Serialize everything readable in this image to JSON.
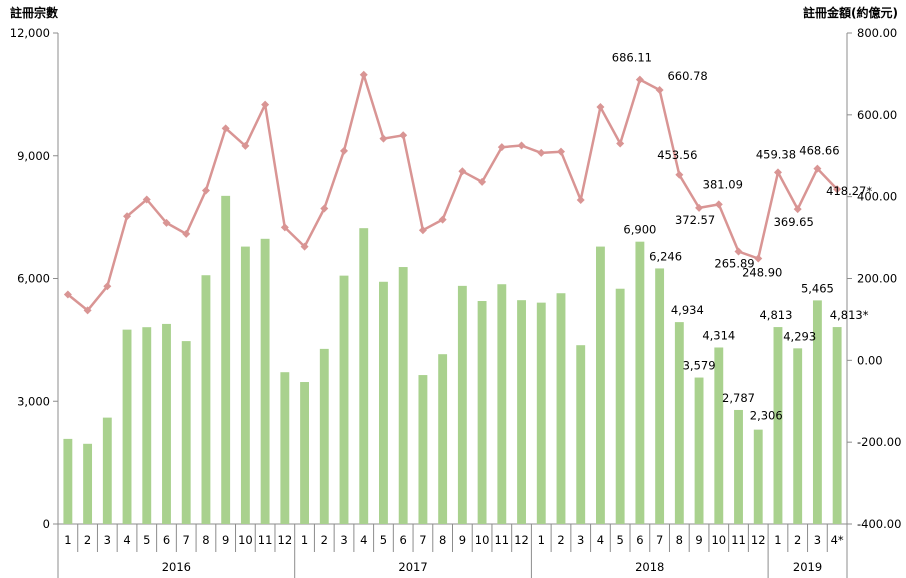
{
  "chart_data": {
    "type": "bar+line",
    "title": "",
    "ylabel_left": "註冊宗數",
    "ylabel_right": "註冊金額(約億元)",
    "ylim_left": [
      0,
      12000
    ],
    "ylim_right": [
      -400,
      800
    ],
    "yticks_left": [
      "0",
      "3,000",
      "6,000",
      "9,000",
      "12,000"
    ],
    "yticks_right": [
      "-400.00",
      "-200.00",
      "0.00",
      "200.00",
      "400.00",
      "600.00",
      "800.00"
    ],
    "grid": false,
    "legend": "none",
    "categories": [
      "1",
      "2",
      "3",
      "4",
      "5",
      "6",
      "7",
      "8",
      "9",
      "10",
      "11",
      "12",
      "1",
      "2",
      "3",
      "4",
      "5",
      "6",
      "7",
      "8",
      "9",
      "10",
      "11",
      "12",
      "1",
      "2",
      "3",
      "4",
      "5",
      "6",
      "7",
      "8",
      "9",
      "10",
      "11",
      "12",
      "1",
      "2",
      "3",
      "4*"
    ],
    "years": [
      {
        "label": "2016",
        "start": 0,
        "count": 12
      },
      {
        "label": "2017",
        "start": 12,
        "count": 12
      },
      {
        "label": "2018",
        "start": 24,
        "count": 12
      },
      {
        "label": "2019",
        "start": 36,
        "count": 4
      }
    ],
    "series": [
      {
        "name": "註冊宗數",
        "kind": "bar",
        "axis": "left",
        "color": "#a9d18e",
        "values": [
          2080,
          1960,
          2600,
          4750,
          4810,
          4890,
          4470,
          6080,
          8020,
          6780,
          6970,
          3710,
          3470,
          4280,
          6070,
          7230,
          5920,
          6280,
          3640,
          4150,
          5820,
          5450,
          5860,
          5470,
          5410,
          5640,
          4370,
          6780,
          5750,
          6900,
          6246,
          4934,
          3579,
          4314,
          2787,
          2306,
          4813,
          4293,
          5465,
          4813
        ],
        "labels": [
          "",
          "",
          "",
          "",
          "",
          "",
          "",
          "",
          "",
          "",
          "",
          "",
          "",
          "",
          "",
          "",
          "",
          "",
          "",
          "",
          "",
          "",
          "",
          "",
          "",
          "",
          "",
          "",
          "",
          "6,900",
          "6,246",
          "4,934",
          "3,579",
          "4,314",
          "2,787",
          "2,306",
          "4,813",
          "4,293",
          "5,465",
          "4,813*"
        ]
      },
      {
        "name": "註冊金額(約億元)",
        "kind": "line",
        "axis": "right",
        "color": "#d99594",
        "values": [
          161,
          122,
          181,
          352,
          393,
          336,
          309,
          415,
          567,
          524,
          625,
          325,
          278,
          371,
          512,
          698,
          542,
          550,
          318,
          344,
          462,
          436,
          521,
          525,
          507,
          510,
          392,
          619,
          530,
          686.11,
          660.78,
          453.56,
          372.57,
          381.09,
          265.89,
          248.9,
          459.38,
          369.65,
          468.66,
          418.27
        ],
        "labels": [
          "",
          "",
          "",
          "",
          "",
          "",
          "",
          "",
          "",
          "",
          "",
          "",
          "",
          "",
          "",
          "",
          "",
          "",
          "",
          "",
          "",
          "",
          "",
          "",
          "",
          "",
          "",
          "",
          "",
          "686.11",
          "660.78",
          "453.56",
          "372.57",
          "381.09",
          "265.89",
          "248.90",
          "459.38",
          "369.65",
          "468.66",
          "418.27*"
        ]
      }
    ]
  }
}
